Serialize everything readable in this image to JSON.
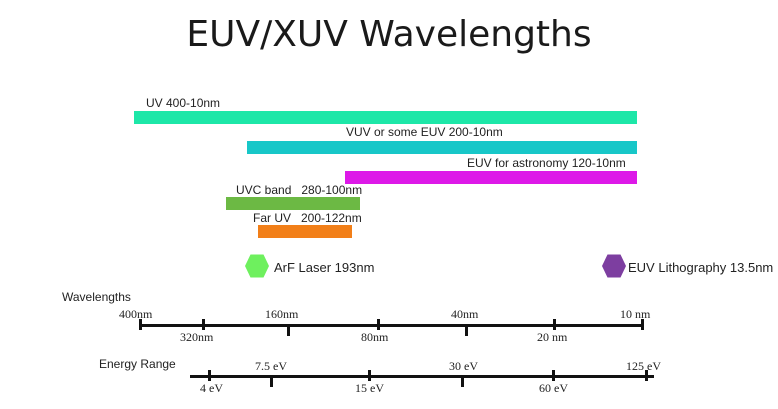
{
  "title": "EUV/XUV Wavelengths",
  "bands": [
    {
      "label": "UV 400-10nm",
      "color": "#1de7a8"
    },
    {
      "label": "VUV or some EUV 200-10nm",
      "color": "#17c7c8"
    },
    {
      "label": "EUV for astronomy 120-10nm",
      "color": "#dd19e8"
    },
    {
      "label": "UVC band   280-100nm",
      "color": "#6cb944"
    },
    {
      "label": "Far UV   200-122nm",
      "color": "#f27f18"
    }
  ],
  "markers": [
    {
      "label": "ArF Laser 193nm",
      "color": "#6ef05e"
    },
    {
      "label": "EUV Lithography 13.5nm",
      "color": "#7d3ea0"
    }
  ],
  "wavelength_axis": {
    "title": "Wavelengths",
    "upper_ticks": [
      "400nm",
      "160nm",
      "40nm",
      "10 nm"
    ],
    "lower_ticks": [
      "320nm",
      "80nm",
      "20 nm"
    ]
  },
  "energy_axis": {
    "title": "Energy Range",
    "upper_ticks": [
      "7.5 eV",
      "30 eV",
      "125 eV"
    ],
    "lower_ticks": [
      "4 eV",
      "15 eV",
      "60 eV"
    ]
  }
}
